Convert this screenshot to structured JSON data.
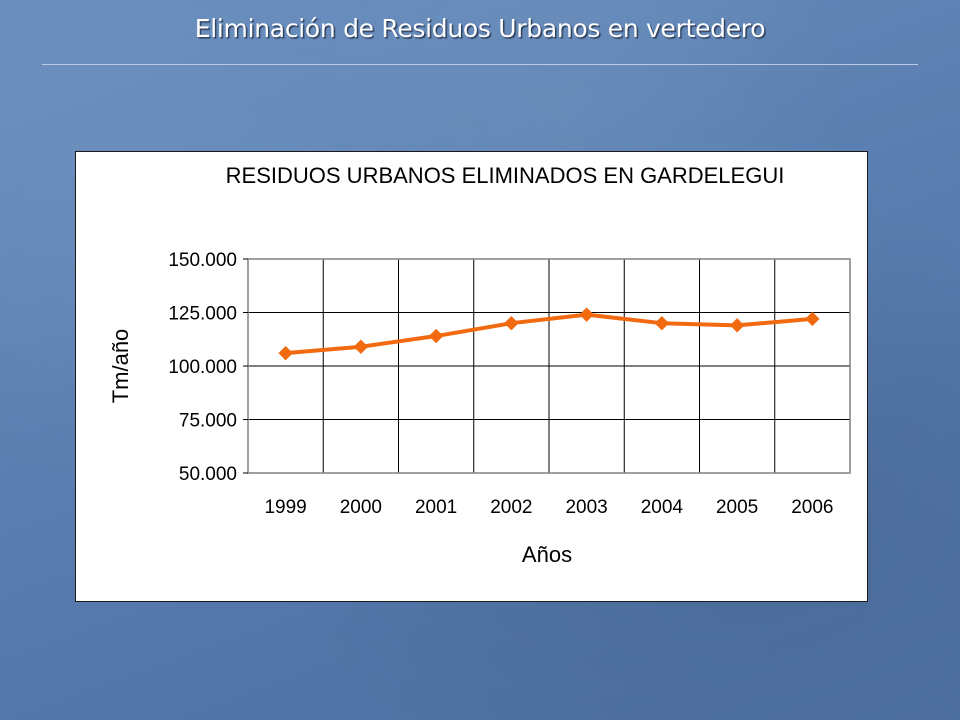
{
  "slide": {
    "title": "Eliminación de Residuos Urbanos en vertedero"
  },
  "chart_data": {
    "type": "line",
    "title": "RESIDUOS URBANOS ELIMINADOS EN GARDELEGUI",
    "xlabel": "Años",
    "ylabel": "Tm/año",
    "categories": [
      "1999",
      "2000",
      "2001",
      "2002",
      "2003",
      "2004",
      "2005",
      "2006"
    ],
    "series": [
      {
        "values": [
          106000,
          109000,
          114000,
          120000,
          124000,
          120000,
          119000,
          122000
        ],
        "color": "#f26a10",
        "marker": "diamond"
      }
    ],
    "ylim": [
      50000,
      150000
    ],
    "yticks": [
      50000,
      75000,
      100000,
      125000,
      150000
    ],
    "ytick_labels": [
      "50.000",
      "75.000",
      "100.000",
      "125.000",
      "150.000"
    ],
    "grid": true,
    "legend": "none"
  }
}
